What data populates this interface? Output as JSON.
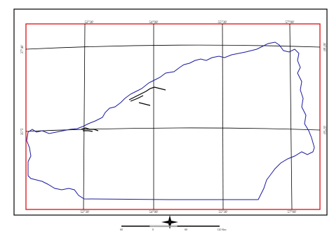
{
  "map": {
    "top_ticks": [
      "52°30'",
      "54°00'",
      "55°30'",
      "57°00'"
    ],
    "bottom_ticks": [
      "52°30'",
      "54°00'",
      "55°30'",
      "57°00'"
    ],
    "left_ticks": [
      "37°40'",
      "35°5'"
    ],
    "right_ticks": [
      "36°40'",
      "35°50'"
    ],
    "colors": {
      "outer_frame": "#000000",
      "inner_frame": "#e02020",
      "boundary": "#1a1aa0",
      "graticule": "#000000",
      "features": "#000000"
    }
  },
  "scale_bar": {
    "labels": [
      "60",
      "0",
      "60",
      "120 Km"
    ]
  },
  "icons": {
    "north_arrow": "north-arrow-icon"
  }
}
